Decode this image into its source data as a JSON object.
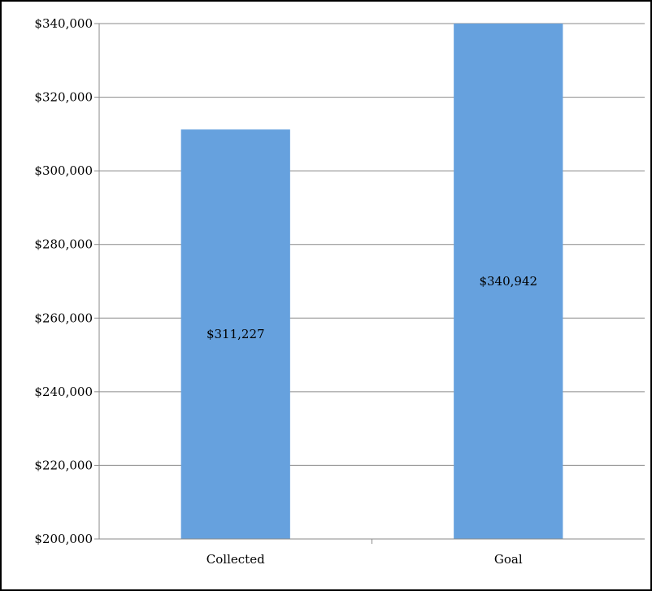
{
  "chart_data": {
    "type": "bar",
    "title": "",
    "xlabel": "",
    "ylabel": "",
    "categories": [
      "Collected",
      "Goal"
    ],
    "values": [
      311227,
      340942
    ],
    "data_labels": [
      "$311,227",
      "$340,942"
    ],
    "ylim": [
      200000,
      340000
    ],
    "yticks": [
      200000,
      220000,
      240000,
      260000,
      280000,
      300000,
      320000,
      340000
    ],
    "ytick_labels": [
      "$200,000",
      "$220,000",
      "$240,000",
      "$260,000",
      "$280,000",
      "$300,000",
      "$320,000",
      "$340,000"
    ],
    "grid": true,
    "legend": "none",
    "colors": {
      "bar": "#66a1de",
      "grid": "#8a8a8a",
      "axis": "#8a8a8a"
    }
  }
}
